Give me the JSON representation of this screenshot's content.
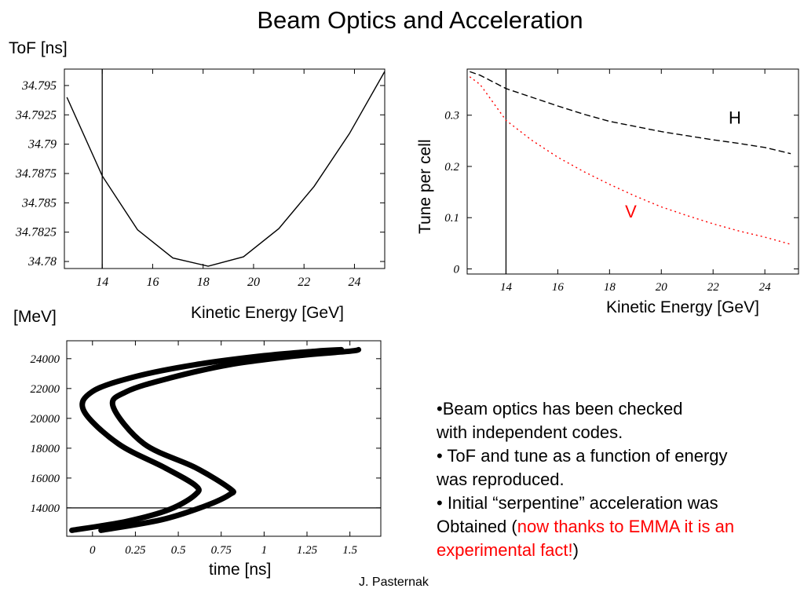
{
  "slide": {
    "title": "Beam Optics and Acceleration",
    "author": "J. Pasternak",
    "bullets": [
      {
        "text": "•Beam optics has been checked"
      },
      {
        "text": "with independent codes."
      },
      {
        "text": "• ToF and tune as a function of energy"
      },
      {
        "text": "was reproduced."
      },
      {
        "text": "• Initial “serpentine” acceleration was"
      },
      {
        "prefix": "Obtained (",
        "highlight": "now thanks to EMMA it is an",
        "highlight_color": "#ff0000"
      },
      {
        "highlight": "experimental fact!",
        "suffix": ")",
        "highlight_color": "#ff0000"
      }
    ]
  },
  "chart_data": [
    {
      "id": "tof",
      "type": "line",
      "ylabel": "ToF [ns]",
      "xlabel": "Kinetic Energy [GeV]",
      "xlim": [
        12.5,
        25.2
      ],
      "ylim": [
        34.7794,
        34.7964
      ],
      "xticks": [
        "14",
        "16",
        "18",
        "20",
        "22",
        "24"
      ],
      "yticks": [
        "34.78",
        "34.7825",
        "34.785",
        "34.7875",
        "34.79",
        "34.7925",
        "34.795"
      ],
      "vline": 14,
      "series": [
        {
          "x": [
            12.6,
            14.0,
            15.4,
            16.8,
            18.2,
            19.6,
            21.0,
            22.4,
            23.8,
            25.2
          ],
          "y": [
            34.794,
            34.7873,
            34.7827,
            34.7803,
            34.7796,
            34.7804,
            34.7828,
            34.7864,
            34.7909,
            34.7962
          ],
          "color": "#000000",
          "style": "solid"
        }
      ]
    },
    {
      "id": "tune",
      "type": "line",
      "ylabel": "Tune  per cell",
      "xlabel": "Kinetic Energy [GeV]",
      "xlim": [
        12.5,
        25.3
      ],
      "ylim": [
        -0.01,
        0.39
      ],
      "xticks": [
        "14",
        "16",
        "18",
        "20",
        "22",
        "24"
      ],
      "yticks": [
        "0",
        "0.1",
        "0.2",
        "0.3"
      ],
      "vline": 14,
      "series": [
        {
          "name": "H",
          "x": [
            12.6,
            13,
            14,
            15,
            16,
            17,
            18,
            19,
            20,
            21,
            22,
            23,
            24,
            25
          ],
          "y": [
            0.385,
            0.378,
            0.352,
            0.335,
            0.318,
            0.302,
            0.288,
            0.278,
            0.268,
            0.26,
            0.252,
            0.245,
            0.237,
            0.225
          ],
          "color": "#000000",
          "style": "dashed"
        },
        {
          "name": "V",
          "x": [
            12.6,
            13,
            14,
            15,
            16,
            17,
            18,
            19,
            20,
            21,
            22,
            23,
            24,
            25
          ],
          "y": [
            0.375,
            0.36,
            0.29,
            0.251,
            0.218,
            0.19,
            0.165,
            0.142,
            0.121,
            0.104,
            0.088,
            0.074,
            0.062,
            0.048
          ],
          "color": "#ff0000",
          "style": "dotted"
        }
      ]
    },
    {
      "id": "phase",
      "type": "line",
      "ylabel": "[MeV]",
      "xlabel": "time [ns]",
      "xlim": [
        -0.15,
        1.68
      ],
      "ylim": [
        12100,
        25200
      ],
      "xticks": [
        "0",
        "0.25",
        "0.5",
        "0.75",
        "1",
        "1.25",
        "1.5"
      ],
      "yticks": [
        "14000",
        "16000",
        "18000",
        "20000",
        "22000",
        "24000"
      ],
      "hline": 14000,
      "series": [
        {
          "x": [
            -0.12,
            0.2,
            0.45,
            0.6,
            0.6,
            0.42,
            0.15,
            -0.05,
            0.0,
            0.25,
            0.6,
            1.0,
            1.3,
            1.45
          ],
          "y": [
            12500,
            13100,
            13900,
            14900,
            15500,
            16700,
            18300,
            20500,
            21800,
            22800,
            23600,
            24200,
            24500,
            24600
          ],
          "color": "#000000",
          "style": "band"
        },
        {
          "x": [
            0.05,
            0.4,
            0.65,
            0.8,
            0.8,
            0.6,
            0.3,
            0.12,
            0.2,
            0.45,
            0.8,
            1.2,
            1.5,
            1.55
          ],
          "y": [
            12500,
            13200,
            14100,
            14900,
            15300,
            16700,
            18300,
            20800,
            21800,
            22700,
            23600,
            24200,
            24500,
            24600
          ],
          "color": "#000000",
          "style": "band"
        }
      ]
    }
  ]
}
